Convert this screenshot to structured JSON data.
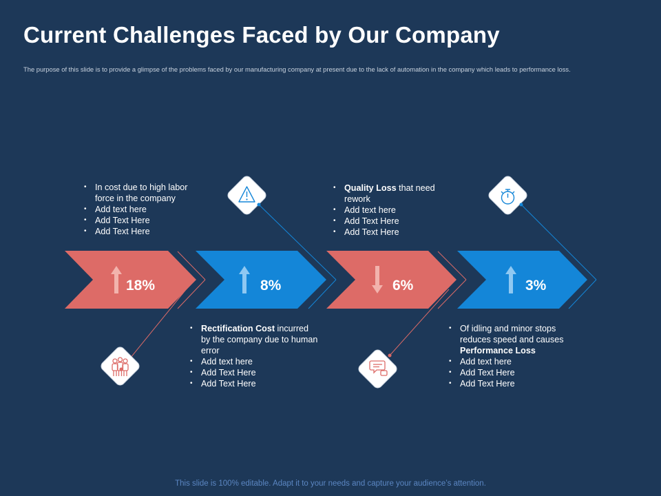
{
  "slide": {
    "title": "Current Challenges Faced by Our Company",
    "subtitle": "The purpose of this slide is to provide a glimpse of the problems faced by our manufacturing company at present due to the lack of automation in the company which leads to performance loss.",
    "footer": "This slide is 100% editable. Adapt it to your needs and capture your audience’s attention."
  },
  "colors": {
    "background": "#1d3858",
    "coral": "#dd6b67",
    "blue": "#1486d8"
  },
  "steps": [
    {
      "value": "18%",
      "direction": "up",
      "color": "coral",
      "icon": "people-group-icon",
      "bullets": [
        {
          "bold": "",
          "text": "In cost due to high labor force in the company"
        },
        {
          "bold": "",
          "text": "Add text here"
        },
        {
          "bold": "",
          "text": "Add Text Here"
        },
        {
          "bold": "",
          "text": "Add Text Here"
        }
      ]
    },
    {
      "value": "8%",
      "direction": "up",
      "color": "blue",
      "icon": "warning-triangle-icon",
      "bullets": [
        {
          "bold": "Rectification Cost",
          "text": " incurred by the company due to human error"
        },
        {
          "bold": "",
          "text": "Add text here"
        },
        {
          "bold": "",
          "text": "Add Text Here"
        },
        {
          "bold": "",
          "text": "Add Text Here"
        }
      ]
    },
    {
      "value": "6%",
      "direction": "down",
      "color": "coral",
      "icon": "feedback-thumbs-down-icon",
      "bullets": [
        {
          "bold": "Quality Loss",
          "text": " that need rework"
        },
        {
          "bold": "",
          "text": "Add text here"
        },
        {
          "bold": "",
          "text": "Add Text Here"
        },
        {
          "bold": "",
          "text": "Add Text Here"
        }
      ]
    },
    {
      "value": "3%",
      "direction": "up",
      "color": "blue",
      "icon": "stopwatch-icon",
      "bullets": [
        {
          "bold": "",
          "text": "Of idling and minor stops reduces speed and causes "
        },
        {
          "bold": "Performance  Loss",
          "text": ""
        },
        {
          "bold": "",
          "text": "Add text here"
        },
        {
          "bold": "",
          "text": "Add Text Here"
        },
        {
          "bold": "",
          "text": "Add Text Here"
        }
      ]
    }
  ]
}
